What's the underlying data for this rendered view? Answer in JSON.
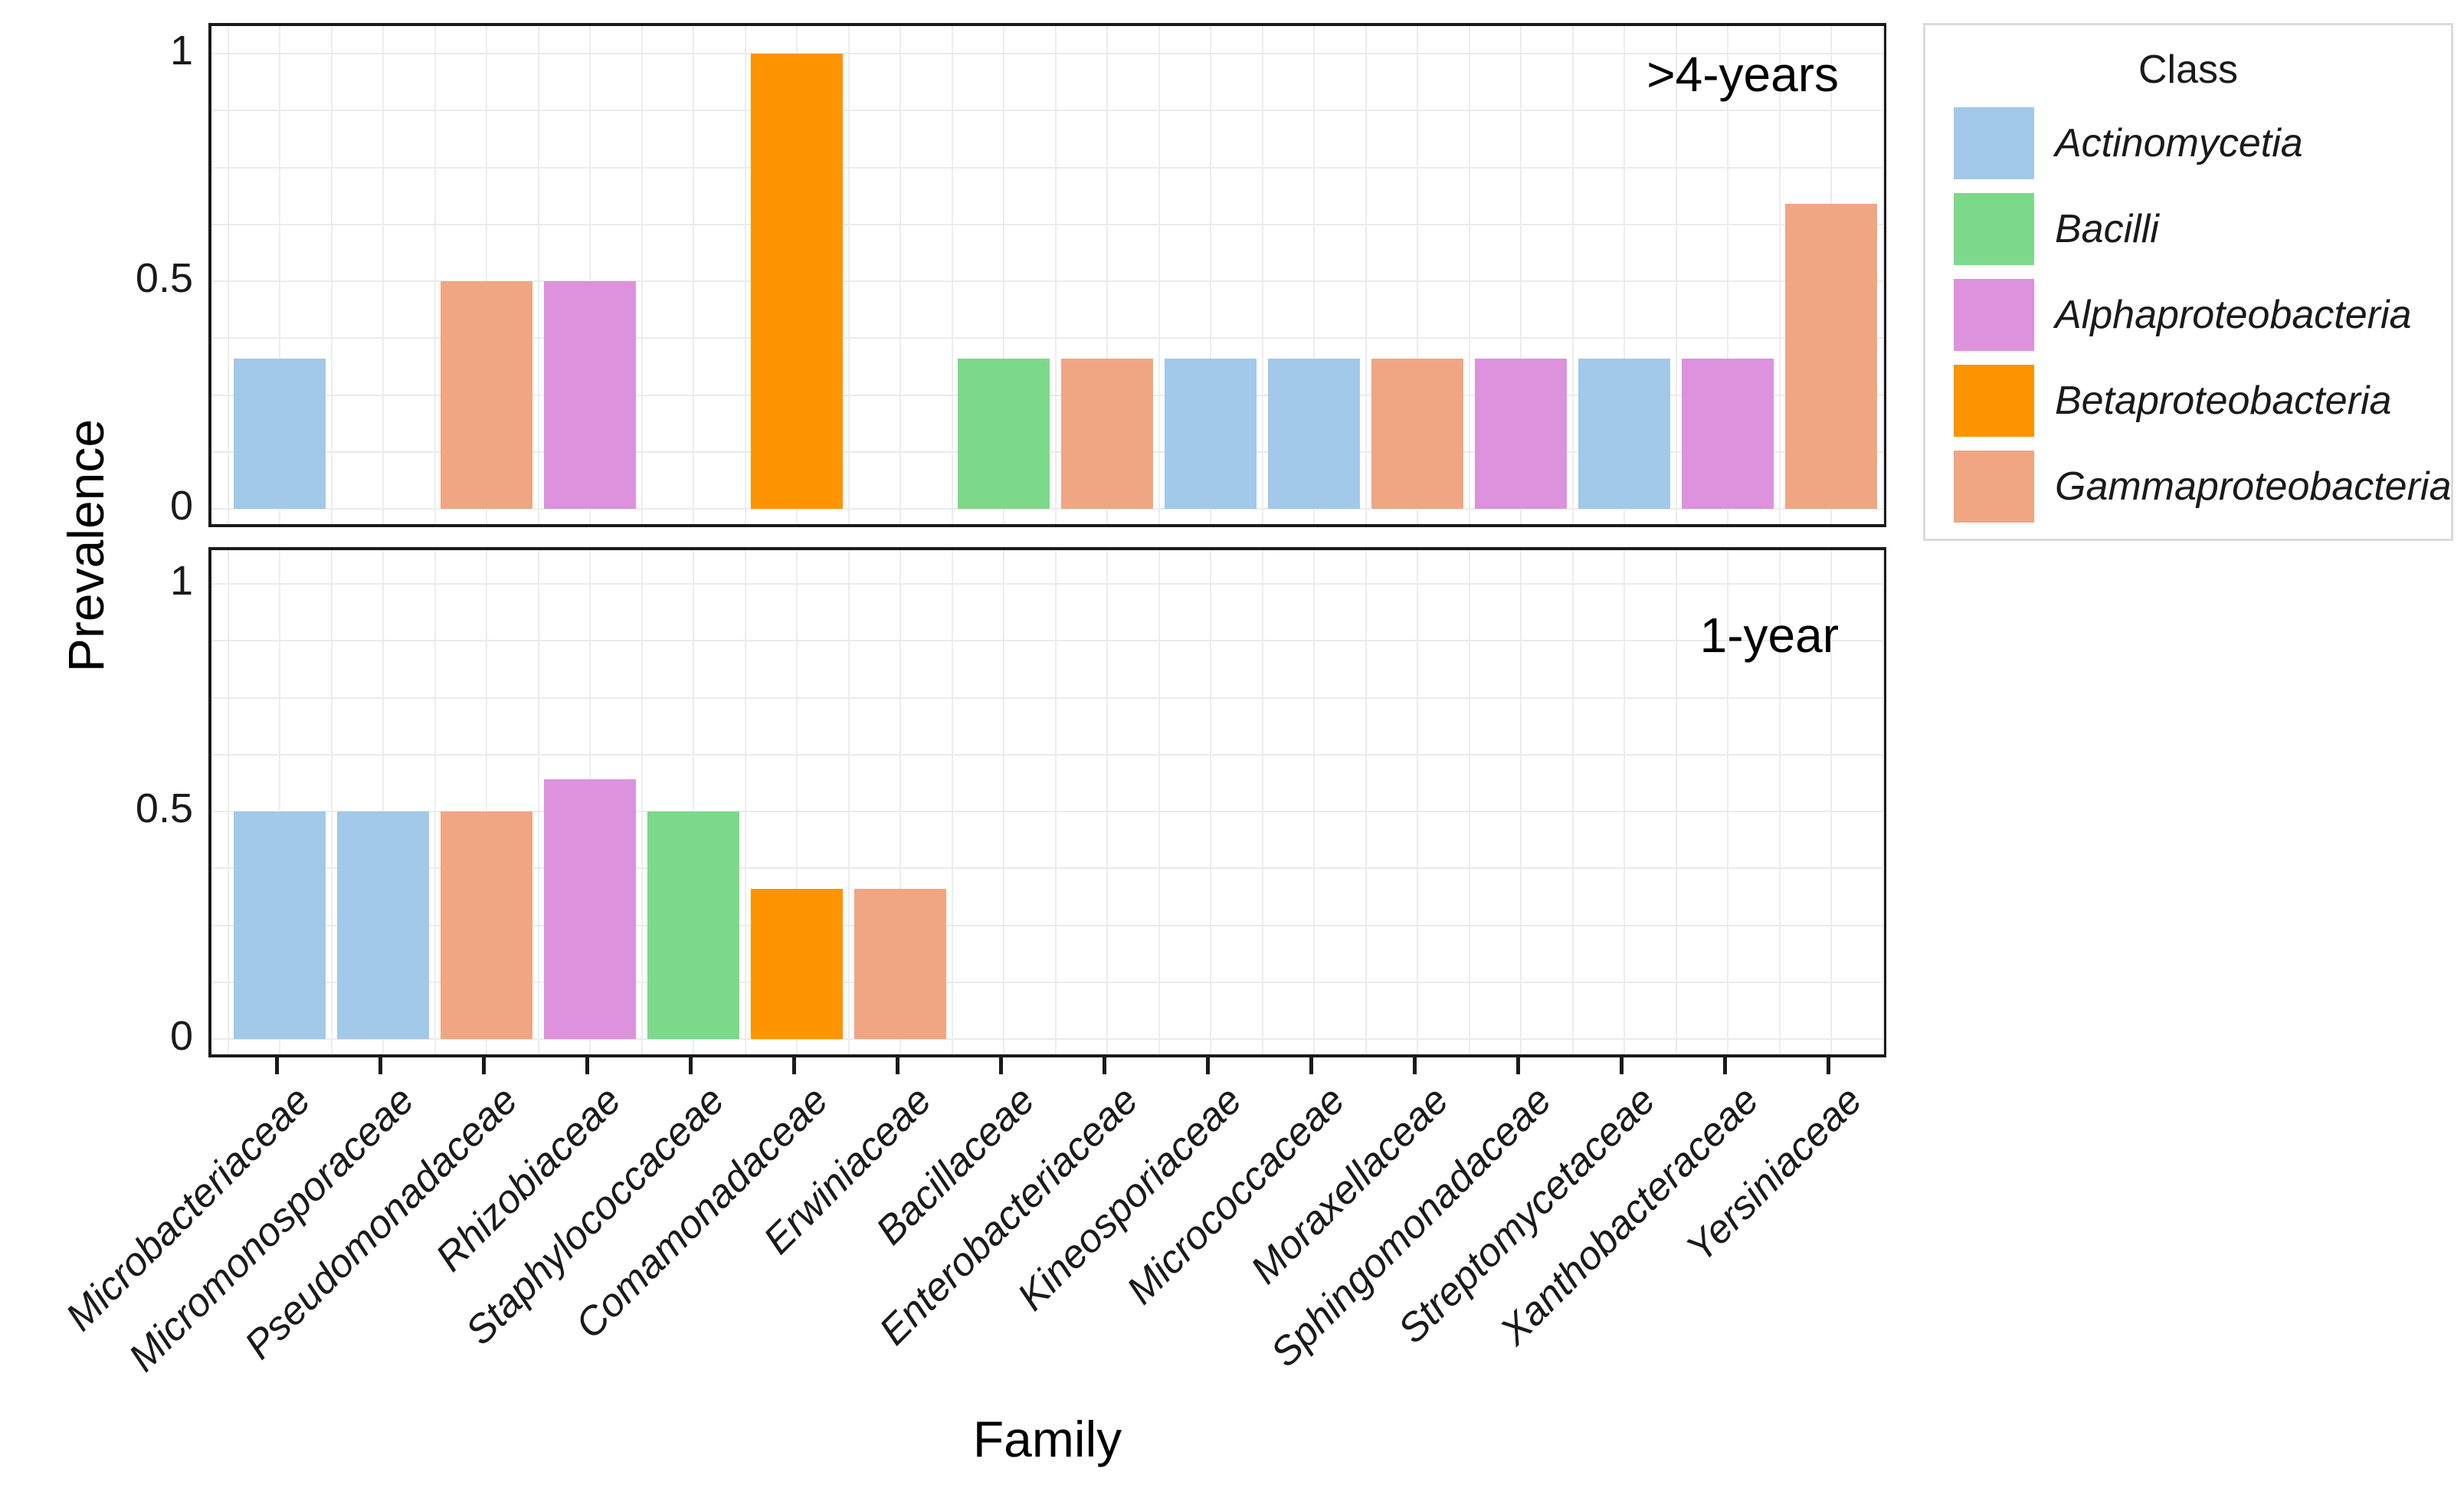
{
  "y_axis": {
    "label": "Prevalence",
    "ticks": [
      {
        "value": 1,
        "label": "1"
      },
      {
        "value": 0.5,
        "label": "0.5"
      },
      {
        "value": 0,
        "label": "0"
      }
    ]
  },
  "x_axis": {
    "label": "Family",
    "categories": [
      "Microbacteriaceae",
      "Micromonosporaceae",
      "Pseudomonadaceae",
      "Rhizobiaceae",
      "Staphylococcaceae",
      "Comamonadaceae",
      "Erwiniaceae",
      "Bacillaceae",
      "Enterobacteriaceae",
      "Kineosporiaceae",
      "Micrococcaceae",
      "Moraxellaceae",
      "Sphingomonadaceae",
      "Streptomycetaceae",
      "Xanthobacteraceae",
      "Yersiniaceae"
    ]
  },
  "legend": {
    "title": "Class",
    "items": [
      {
        "label": "Actinomycetia",
        "color": "#a2c8ea"
      },
      {
        "label": "Bacilli",
        "color": "#7cd98a"
      },
      {
        "label": "Alphaproteobacteria",
        "color": "#dc92dc"
      },
      {
        "label": "Betaproteobacteria",
        "color": "#fd9400"
      },
      {
        "label": "Gammaproteobacteria",
        "color": "#f0a682"
      }
    ]
  },
  "chart_data": {
    "type": "bar",
    "title": "",
    "xlabel": "Family",
    "ylabel": "Prevalence",
    "ylim": [
      0,
      1
    ],
    "y_breaks": [
      0,
      0.5,
      1
    ],
    "gridlines": "horizontal every 0.125; vertical at every half category step",
    "legend_position": "right",
    "categories": [
      "Microbacteriaceae",
      "Micromonosporaceae",
      "Pseudomonadaceae",
      "Rhizobiaceae",
      "Staphylococcaceae",
      "Comamonadaceae",
      "Erwiniaceae",
      "Bacillaceae",
      "Enterobacteriaceae",
      "Kineosporiaceae",
      "Micrococcaceae",
      "Moraxellaceae",
      "Sphingomonadaceae",
      "Streptomycetaceae",
      "Xanthobacteraceae",
      "Yersiniaceae"
    ],
    "category_classes": [
      "Actinomycetia",
      "Actinomycetia",
      "Gammaproteobacteria",
      "Alphaproteobacteria",
      "Bacilli",
      "Betaproteobacteria",
      "Gammaproteobacteria",
      "Bacilli",
      "Gammaproteobacteria",
      "Actinomycetia",
      "Actinomycetia",
      "Gammaproteobacteria",
      "Alphaproteobacteria",
      "Actinomycetia",
      "Alphaproteobacteria",
      "Gammaproteobacteria"
    ],
    "class_colors": {
      "Actinomycetia": "#a2c8ea",
      "Bacilli": "#7cd98a",
      "Alphaproteobacteria": "#dc92dc",
      "Betaproteobacteria": "#fd9400",
      "Gammaproteobacteria": "#f0a682"
    },
    "facets": [
      {
        "name": ">4-years",
        "values": [
          0.33,
          null,
          0.5,
          0.5,
          null,
          1.0,
          null,
          0.33,
          0.33,
          0.33,
          0.33,
          0.33,
          0.33,
          0.33,
          0.33,
          0.67
        ]
      },
      {
        "name": "1-year",
        "values": [
          0.5,
          0.5,
          0.5,
          0.57,
          0.5,
          0.33,
          0.33,
          null,
          null,
          null,
          null,
          null,
          null,
          null,
          null,
          null
        ]
      }
    ]
  }
}
